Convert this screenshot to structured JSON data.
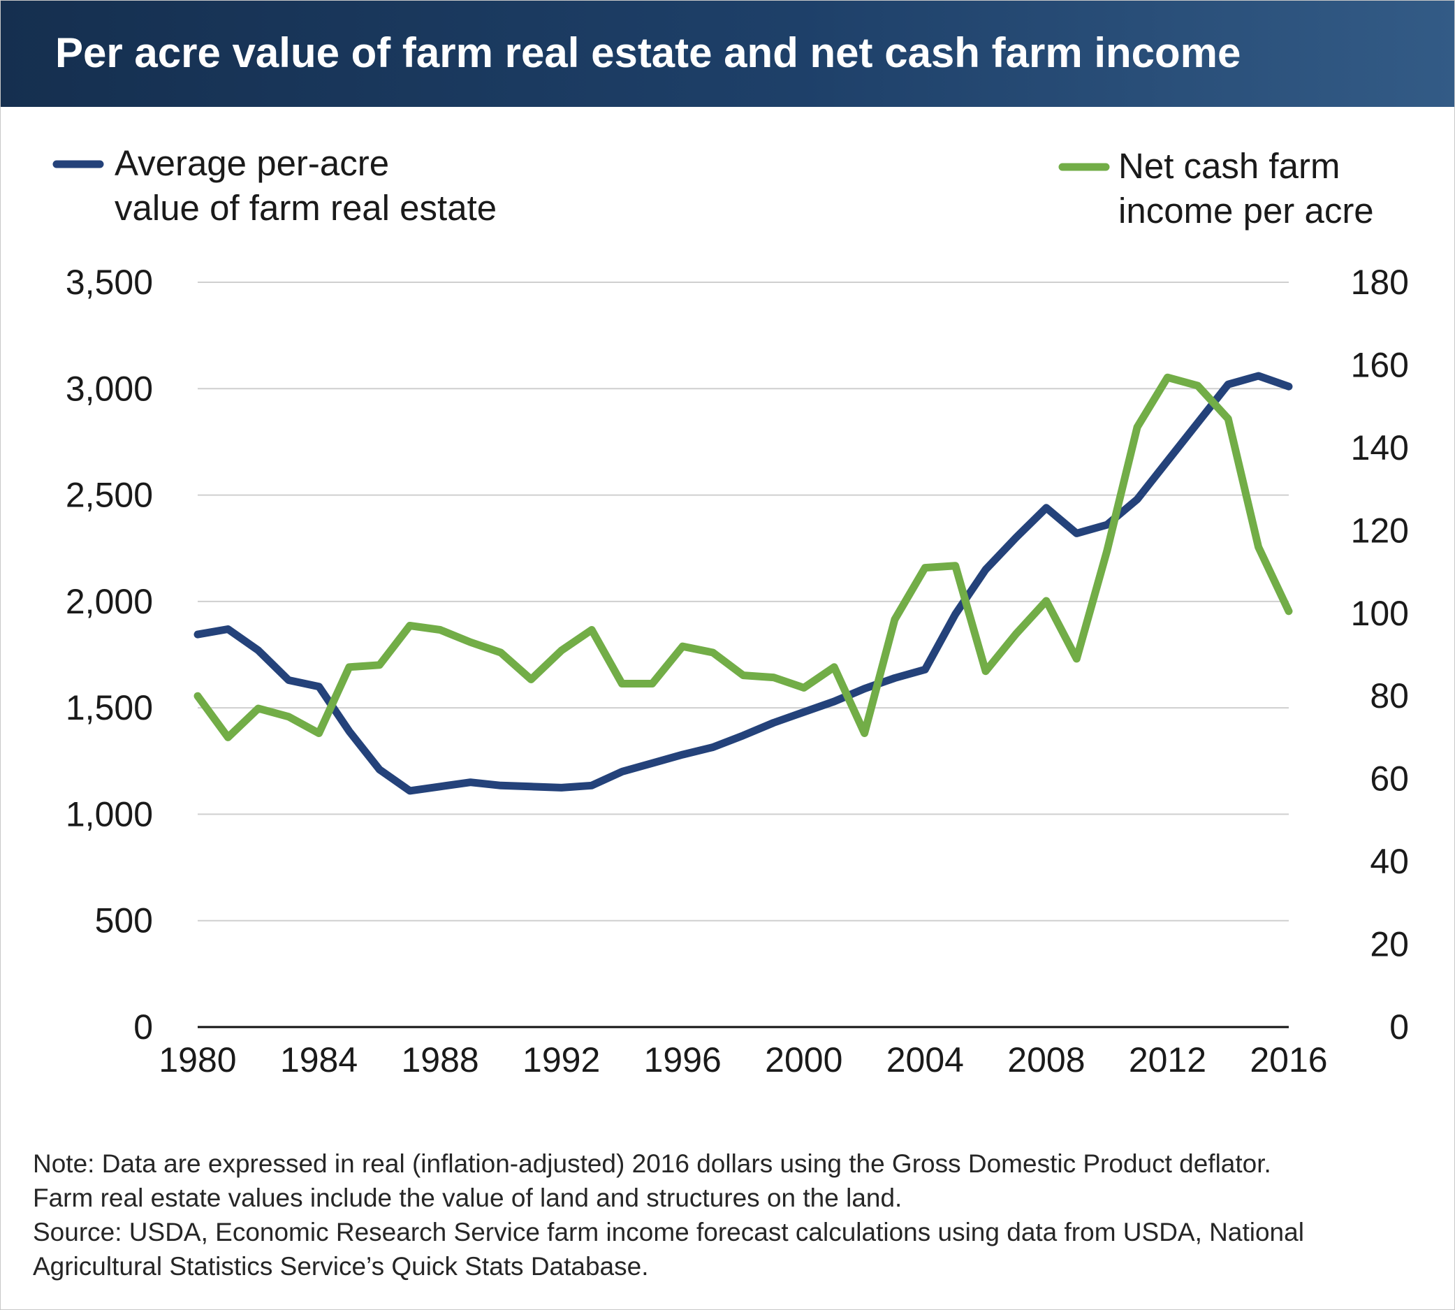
{
  "title": "Per acre value of farm real estate and net cash farm income",
  "legend": {
    "left": {
      "lines": [
        "Average per-acre",
        "value of farm real estate"
      ],
      "color": "#24427a"
    },
    "right": {
      "lines": [
        "Net cash farm",
        "income per acre"
      ],
      "color": "#72ad47"
    }
  },
  "notes": [
    "Note: Data are expressed in real (inflation-adjusted) 2016 dollars using the Gross Domestic Product deflator.",
    "Farm real estate values include the value of land and structures on the land.",
    "Source: USDA, Economic Research Service farm income forecast calculations using data from USDA, National",
    "Agricultural Statistics Service’s Quick Stats Database."
  ],
  "chart_data": {
    "type": "line",
    "x": [
      1980,
      1981,
      1982,
      1983,
      1984,
      1985,
      1986,
      1987,
      1988,
      1989,
      1990,
      1991,
      1992,
      1993,
      1994,
      1995,
      1996,
      1997,
      1998,
      1999,
      2000,
      2001,
      2002,
      2003,
      2004,
      2005,
      2006,
      2007,
      2008,
      2009,
      2010,
      2011,
      2012,
      2013,
      2014,
      2015,
      2016
    ],
    "xticks": [
      "1980",
      "1984",
      "1988",
      "1992",
      "1996",
      "2000",
      "2004",
      "2008",
      "2012",
      "2016"
    ],
    "xlim": [
      1980,
      2016
    ],
    "y_left": {
      "ticks": [
        "0",
        "500",
        "1,000",
        "1,500",
        "2,000",
        "2,500",
        "3,000",
        "3,500"
      ],
      "lim": [
        0,
        3500
      ]
    },
    "y_right": {
      "ticks": [
        "0",
        "20",
        "40",
        "60",
        "80",
        "100",
        "120",
        "140",
        "160",
        "180"
      ],
      "lim": [
        0,
        180
      ]
    },
    "grid": true,
    "legend_position": "top",
    "series": [
      {
        "name": "Average per-acre value of farm real estate",
        "axis": "left",
        "color": "#24427a",
        "values": [
          1845,
          1870,
          1770,
          1630,
          1600,
          1390,
          1210,
          1110,
          1130,
          1150,
          1135,
          1130,
          1125,
          1135,
          1200,
          1240,
          1280,
          1315,
          1370,
          1430,
          1480,
          1530,
          1590,
          1640,
          1680,
          1940,
          2150,
          2300,
          2440,
          2320,
          2360,
          2480,
          2660,
          2840,
          3020,
          3060,
          3010
        ]
      },
      {
        "name": "Net cash farm income per acre",
        "axis": "right",
        "color": "#72ad47",
        "values": [
          80,
          70,
          77,
          75,
          71,
          87,
          87.5,
          97,
          96,
          93,
          90.5,
          84,
          91,
          96,
          83,
          83,
          92,
          90.5,
          85,
          84.5,
          82,
          87,
          71,
          98.5,
          111,
          111.5,
          86,
          95,
          103,
          89,
          115,
          145,
          157,
          155,
          147,
          116,
          100.5
        ]
      }
    ]
  }
}
